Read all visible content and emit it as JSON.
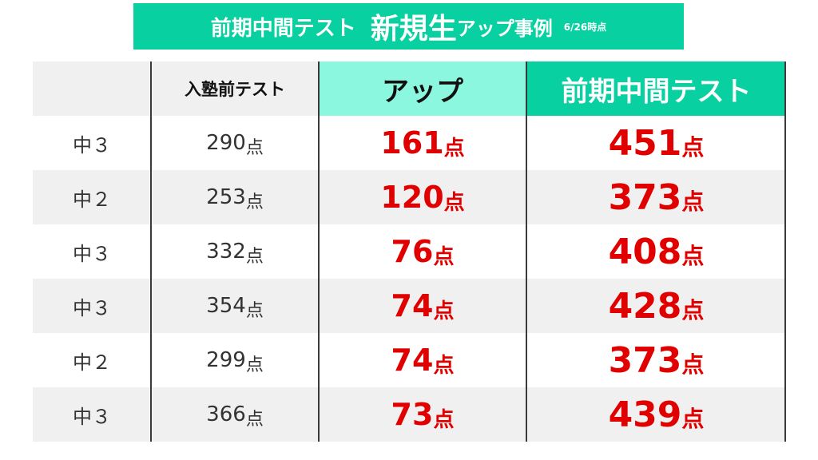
{
  "banner": {
    "part1": "前期中間テスト",
    "part2": "新規生",
    "part3": "アップ事例",
    "date": "6/26時点"
  },
  "table": {
    "headers": {
      "grade": "",
      "pre_test": "入塾前テスト",
      "up": "アップ",
      "midterm": "前期中間テスト"
    },
    "unit": "点",
    "rows": [
      {
        "grade": "中３",
        "pre": "290",
        "up": "161",
        "mid": "451"
      },
      {
        "grade": "中２",
        "pre": "253",
        "up": "120",
        "mid": "373"
      },
      {
        "grade": "中３",
        "pre": "332",
        "up": "76",
        "mid": "408"
      },
      {
        "grade": "中３",
        "pre": "354",
        "up": "74",
        "mid": "428"
      },
      {
        "grade": "中２",
        "pre": "299",
        "up": "74",
        "mid": "373"
      },
      {
        "grade": "中３",
        "pre": "366",
        "up": "73",
        "mid": "439"
      }
    ]
  },
  "colors": {
    "accent": "#08d0a0",
    "accent_light": "#8cf7df",
    "score_red": "#e00000",
    "row_stripe": "#f0f0f0"
  }
}
